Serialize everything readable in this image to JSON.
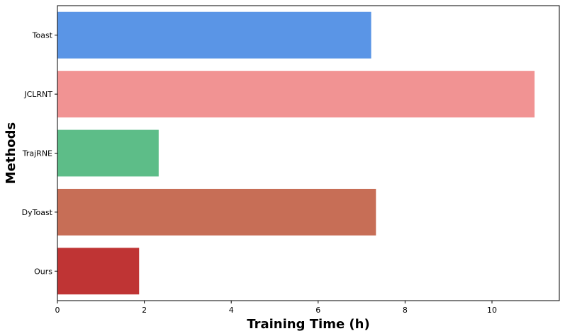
{
  "chart_data": {
    "type": "bar",
    "orientation": "horizontal",
    "title": "",
    "xlabel": "Training Time (h)",
    "ylabel": "Methods",
    "categories": [
      "Toast",
      "JCLRNT",
      "TrajRNE",
      "DyToast",
      "Ours"
    ],
    "values": [
      7.22,
      10.98,
      2.33,
      7.33,
      1.88
    ],
    "colors": [
      "#5a95e6",
      "#f19393",
      "#5dbd88",
      "#c76e56",
      "#bf3434"
    ],
    "xlim": [
      0,
      11.55
    ],
    "xticks": [
      0,
      2,
      4,
      6,
      8,
      10
    ],
    "grid": false,
    "legend": "none"
  }
}
